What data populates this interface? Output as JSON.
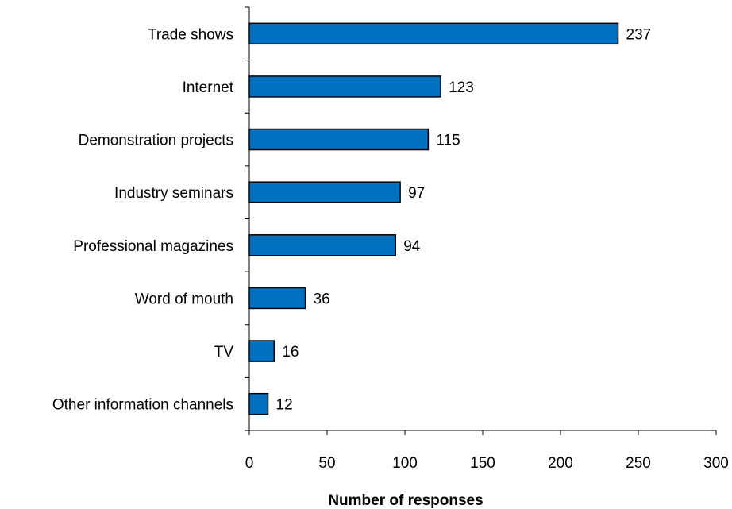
{
  "chart_data": {
    "type": "bar",
    "orientation": "horizontal",
    "categories": [
      "Trade shows",
      "Internet",
      "Demonstration projects",
      "Industry seminars",
      "Professional magazines",
      "Word of mouth",
      "TV",
      "Other information channels"
    ],
    "values": [
      237,
      123,
      115,
      97,
      94,
      36,
      16,
      12
    ],
    "title": "",
    "xlabel": "Number of responses",
    "ylabel": "",
    "xlim": [
      0,
      300
    ],
    "xticks": [
      0,
      50,
      100,
      150,
      200,
      250,
      300
    ],
    "xtick_labels": [
      "0",
      "50",
      "100",
      "150",
      "200",
      "250",
      "300"
    ],
    "grid": false,
    "legend": "none",
    "data_labels": true,
    "colors": {
      "bar_fill": "#0070C0",
      "bar_stroke": "#000000",
      "axis": "#000000",
      "text": "#000000"
    }
  }
}
